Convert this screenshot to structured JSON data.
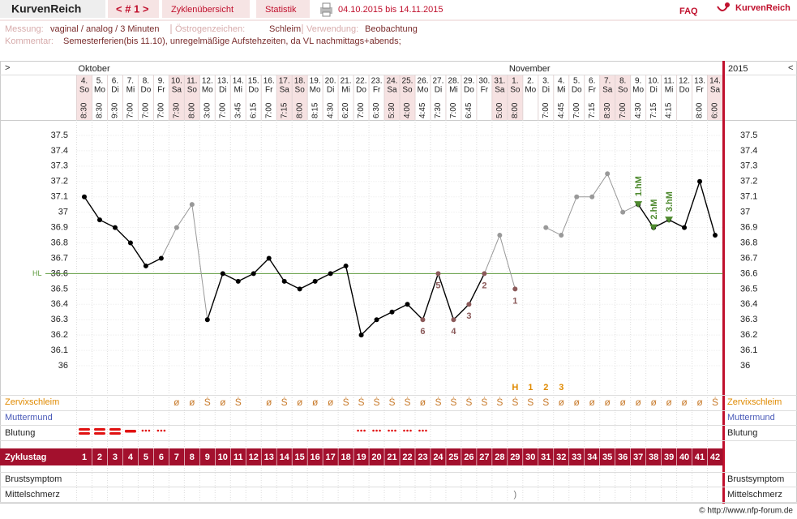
{
  "header": {
    "app": "KurvenReich",
    "nav": "< # 1 >",
    "tabs": [
      "Zyklenübersicht",
      "Statistik"
    ],
    "range": "04.10.2015 bis 14.11.2015",
    "faq": "FAQ",
    "logo": "KurvenReich"
  },
  "info": {
    "messung_label": "Messung:",
    "messung": "vaginal / analog / 3 Minuten",
    "oestrogen_label": "Östrogenzeichen:",
    "oestrogen": "Schleim",
    "verwendung_label": "Verwendung:",
    "verwendung": "Beobachtung",
    "kommentar_label": "Kommentar:",
    "kommentar": "Semesterferien(bis 11.10), unregelmäßige Aufstehzeiten, da VL nachmittags+abends;"
  },
  "chart_data": {
    "type": "line",
    "nav_prev": ">",
    "nav_next": "<",
    "year": "2015",
    "months": [
      "Oktober",
      null,
      null,
      null,
      null,
      null,
      null,
      null,
      null,
      null,
      null,
      null,
      null,
      null,
      null,
      null,
      null,
      null,
      null,
      null,
      null,
      null,
      null,
      null,
      null,
      null,
      null,
      null,
      "November",
      null,
      null,
      null,
      null,
      null,
      null,
      null,
      null,
      null,
      null,
      null,
      null,
      null
    ],
    "categories": [
      "4.",
      "5.",
      "6.",
      "7.",
      "8.",
      "9.",
      "10.",
      "11.",
      "12.",
      "13.",
      "14.",
      "15.",
      "16.",
      "17.",
      "18.",
      "19.",
      "20.",
      "21.",
      "22.",
      "23.",
      "24.",
      "25.",
      "26.",
      "27.",
      "28.",
      "29.",
      "30.",
      "31.",
      "1.",
      "2.",
      "3.",
      "4.",
      "5.",
      "6.",
      "7.",
      "8.",
      "9.",
      "10.",
      "11.",
      "12.",
      "13.",
      "14."
    ],
    "weekdays": [
      "So",
      "Mo",
      "Di",
      "Mi",
      "Do",
      "Fr",
      "Sa",
      "So",
      "Mo",
      "Di",
      "Mi",
      "Do",
      "Fr",
      "Sa",
      "So",
      "Mo",
      "Di",
      "Mi",
      "Do",
      "Fr",
      "Sa",
      "So",
      "Mo",
      "Di",
      "Mi",
      "Do",
      "Fr",
      "Sa",
      "So",
      "Mo",
      "Di",
      "Mi",
      "Do",
      "Fr",
      "Sa",
      "So",
      "Mo",
      "Di",
      "Mi",
      "Do",
      "Fr",
      "Sa"
    ],
    "times": [
      "8:30",
      "8:30",
      "9:30",
      "7:00",
      "7:00",
      "7:00",
      "7:30",
      "8:00",
      "3:00",
      "7:00",
      "3:45",
      "6:15",
      "7:00",
      "7:15",
      "8:00",
      "8:15",
      "4:30",
      "6:20",
      "7:00",
      "6:30",
      "5:30",
      "4:00",
      "4:45",
      "7:30",
      "7:00",
      "6:45",
      null,
      "5:00",
      "8:00",
      null,
      "7:00",
      "4:45",
      "7:00",
      "7:15",
      "8:30",
      "7:00",
      "4:30",
      "7:15",
      "4:15",
      null,
      "8:00",
      "6:00"
    ],
    "values": [
      37.1,
      36.95,
      36.9,
      36.8,
      36.65,
      36.7,
      36.9,
      37.05,
      36.3,
      36.6,
      36.55,
      36.6,
      36.7,
      36.55,
      36.5,
      36.55,
      36.6,
      36.65,
      36.2,
      36.3,
      36.35,
      36.4,
      36.3,
      36.6,
      36.3,
      36.4,
      36.6,
      36.85,
      36.5,
      null,
      36.9,
      36.85,
      37.1,
      37.1,
      37.25,
      37.0,
      37.05,
      36.9,
      36.95,
      36.9,
      37.2,
      36.85
    ],
    "point_colors": [
      "#000000",
      "#000000",
      "#000000",
      "#000000",
      "#000000",
      "#000000",
      "#999999",
      "#999999",
      "#000000",
      "#000000",
      "#000000",
      "#000000",
      "#000000",
      "#000000",
      "#000000",
      "#000000",
      "#000000",
      "#000000",
      "#000000",
      "#000000",
      "#000000",
      "#000000",
      "#8b5a5a",
      "#8b5a5a",
      "#8b5a5a",
      "#8b5a5a",
      "#8b5a5a",
      "#999999",
      "#8b5a5a",
      null,
      "#999999",
      "#999999",
      "#999999",
      "#999999",
      "#999999",
      "#999999",
      "#000000",
      "#000000",
      "#000000",
      "#000000",
      "#000000",
      "#000000"
    ],
    "excluded_color": "#999999",
    "line_color": "#000000",
    "point_labels": [
      null,
      null,
      null,
      null,
      null,
      null,
      null,
      null,
      null,
      null,
      null,
      null,
      null,
      null,
      null,
      null,
      null,
      null,
      null,
      null,
      null,
      null,
      6,
      5,
      4,
      3,
      2,
      null,
      1,
      null,
      null,
      null,
      null,
      null,
      null,
      null,
      null,
      null,
      null,
      null,
      null,
      null
    ],
    "hm_labels": [
      null,
      null,
      null,
      null,
      null,
      null,
      null,
      null,
      null,
      null,
      null,
      null,
      null,
      null,
      null,
      null,
      null,
      null,
      null,
      null,
      null,
      null,
      null,
      null,
      null,
      null,
      null,
      null,
      null,
      null,
      null,
      null,
      null,
      null,
      null,
      null,
      "1.hM",
      "2.hM",
      "3.hM",
      null,
      null,
      null
    ],
    "hm_color": "#4e8a2e",
    "ylim": [
      35.9,
      37.6
    ],
    "yticks": [
      36,
      36.1,
      36.2,
      36.3,
      36.4,
      36.5,
      36.6,
      36.7,
      36.8,
      36.9,
      37,
      37.1,
      37.2,
      37.3,
      37.4,
      37.5
    ],
    "grid": true,
    "hl": 36.6,
    "hl_label": "HL",
    "hl_color": "#5c9a3c",
    "rows": {
      "zervix_label": "Zervixschleim",
      "muttermund_label": "Muttermund",
      "blutung_label": "Blutung",
      "zyklustag_label": "Zyklustag",
      "brust_label": "Brustsymptom",
      "mittel_label": "Mittelschmerz",
      "peak": [
        null,
        null,
        null,
        null,
        null,
        null,
        null,
        null,
        null,
        null,
        null,
        null,
        null,
        null,
        null,
        null,
        null,
        null,
        null,
        null,
        null,
        null,
        null,
        null,
        null,
        null,
        null,
        null,
        "H",
        1,
        2,
        3,
        null,
        null,
        null,
        null,
        null,
        null,
        null,
        null,
        null,
        null
      ],
      "zervix": [
        null,
        null,
        null,
        null,
        null,
        null,
        "ø",
        "ø",
        "Ṡ",
        "ø",
        "Ṡ",
        null,
        "ø",
        "Ṡ",
        "ø",
        "ø",
        "ø",
        "Ṡ",
        "Ṡ",
        "Ṡ",
        "Ṡ",
        "Ṡ",
        "ø",
        "Ṡ",
        "Ṡ",
        "Ṡ",
        "Ṡ",
        "Ṡ",
        "Ṡ",
        "S",
        "S",
        "ø",
        "ø",
        "ø",
        "ø",
        "ø",
        "ø",
        "ø",
        "ø",
        "ø",
        "ø",
        "Ṡ"
      ],
      "blutung": [
        3,
        3,
        3,
        2,
        1,
        1,
        null,
        null,
        null,
        null,
        null,
        null,
        null,
        null,
        null,
        null,
        null,
        null,
        1,
        1,
        1,
        1,
        1,
        null,
        null,
        null,
        null,
        null,
        null,
        null,
        null,
        null,
        null,
        null,
        null,
        null,
        null,
        null,
        null,
        null,
        null,
        null
      ],
      "blutung_color": "#e01010",
      "cycle_days": [
        1,
        2,
        3,
        4,
        5,
        6,
        7,
        8,
        9,
        10,
        11,
        12,
        13,
        14,
        15,
        16,
        17,
        18,
        19,
        20,
        21,
        22,
        23,
        24,
        25,
        26,
        27,
        28,
        29,
        30,
        31,
        32,
        33,
        34,
        35,
        36,
        37,
        38,
        39,
        40,
        41,
        42
      ],
      "mittel": [
        null,
        null,
        null,
        null,
        null,
        null,
        null,
        null,
        null,
        null,
        null,
        null,
        null,
        null,
        null,
        null,
        null,
        null,
        null,
        null,
        null,
        null,
        null,
        null,
        null,
        null,
        null,
        null,
        ")",
        null,
        null,
        null,
        null,
        null,
        null,
        null,
        null,
        null,
        null,
        null,
        null,
        null
      ]
    }
  },
  "footer": "© http://www.nfp-forum.de"
}
